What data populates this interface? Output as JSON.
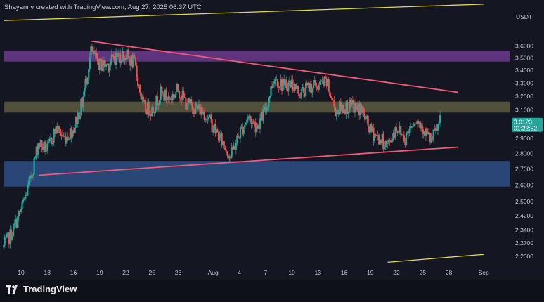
{
  "header": {
    "text": "Shayannv created with TradingView.com, Aug 27, 2025 06:37 UTC"
  },
  "brand": {
    "name": "TradingView"
  },
  "colors": {
    "background": "#141722",
    "candle_up": "#26a69a",
    "candle_down": "#ef5350",
    "trendline_pink": "#f05a78",
    "channel_yellow": "#e6d94a",
    "zone_purple": "#6b3a8c",
    "zone_olive": "#5c5a3e",
    "zone_blue": "#2d4f86",
    "badge": "#26a69a"
  },
  "chart_data": {
    "type": "candlestick",
    "currency_label": "USDT",
    "y_axis": {
      "scale": "log",
      "ticks": [
        "3.6000",
        "3.5000",
        "3.4000",
        "3.3000",
        "3.2000",
        "3.1000",
        "2.9000",
        "2.8000",
        "2.7000",
        "2.6000",
        "2.5000",
        "2.4200",
        "2.3400",
        "2.2700",
        "2.2000"
      ],
      "range": [
        2.17,
        3.75
      ]
    },
    "x_axis": {
      "ticks": [
        "10",
        "13",
        "16",
        "19",
        "22",
        "25",
        "28",
        "Aug",
        "4",
        "7",
        "10",
        "13",
        "16",
        "19",
        "22",
        "25",
        "28",
        "Sep"
      ],
      "range": [
        "2025-07-08",
        "2025-09-01"
      ]
    },
    "current_price": {
      "value": "3.0123",
      "countdown": "01:22:52"
    },
    "zones": [
      {
        "name": "supply-zone-purple",
        "from": 3.47,
        "to": 3.56
      },
      {
        "name": "mid-zone-olive",
        "from": 3.08,
        "to": 3.16
      },
      {
        "name": "demand-zone-blue",
        "from": 2.59,
        "to": 2.75
      }
    ],
    "lines": [
      {
        "name": "upper-channel-line",
        "from": [
          "2025-07-08",
          3.82
        ],
        "to": [
          "2025-09-01",
          3.97
        ]
      },
      {
        "name": "lower-channel-line",
        "from": [
          "2025-08-21",
          2.17
        ],
        "to": [
          "2025-09-01",
          2.21
        ]
      },
      {
        "name": "triangle-upper-line",
        "from": [
          "2025-07-18",
          3.64
        ],
        "to": [
          "2025-08-29",
          3.23
        ]
      },
      {
        "name": "triangle-lower-line",
        "from": [
          "2025-07-12",
          2.66
        ],
        "to": [
          "2025-08-29",
          2.84
        ]
      }
    ],
    "price_path": [
      [
        "2025-07-08",
        2.25
      ],
      [
        "2025-07-09",
        2.33
      ],
      [
        "2025-07-10",
        2.45
      ],
      [
        "2025-07-11",
        2.62
      ],
      [
        "2025-07-12",
        2.87
      ],
      [
        "2025-07-13",
        2.82
      ],
      [
        "2025-07-14",
        2.97
      ],
      [
        "2025-07-15",
        2.9
      ],
      [
        "2025-07-16",
        2.97
      ],
      [
        "2025-07-17",
        3.15
      ],
      [
        "2025-07-18",
        3.55
      ],
      [
        "2025-07-19",
        3.44
      ],
      [
        "2025-07-20",
        3.45
      ],
      [
        "2025-07-21",
        3.52
      ],
      [
        "2025-07-22",
        3.52
      ],
      [
        "2025-07-23",
        3.45
      ],
      [
        "2025-07-24",
        3.12
      ],
      [
        "2025-07-25",
        3.1
      ],
      [
        "2025-07-26",
        3.22
      ],
      [
        "2025-07-27",
        3.18
      ],
      [
        "2025-07-28",
        3.25
      ],
      [
        "2025-07-29",
        3.14
      ],
      [
        "2025-07-30",
        3.12
      ],
      [
        "2025-07-31",
        3.08
      ],
      [
        "2025-08-01",
        2.98
      ],
      [
        "2025-08-02",
        2.88
      ],
      [
        "2025-08-03",
        2.78
      ],
      [
        "2025-08-04",
        2.93
      ],
      [
        "2025-08-05",
        3.05
      ],
      [
        "2025-08-06",
        2.98
      ],
      [
        "2025-08-07",
        3.1
      ],
      [
        "2025-08-08",
        3.35
      ],
      [
        "2025-08-09",
        3.28
      ],
      [
        "2025-08-10",
        3.3
      ],
      [
        "2025-08-11",
        3.22
      ],
      [
        "2025-08-12",
        3.27
      ],
      [
        "2025-08-13",
        3.28
      ],
      [
        "2025-08-14",
        3.3
      ],
      [
        "2025-08-15",
        3.1
      ],
      [
        "2025-08-16",
        3.12
      ],
      [
        "2025-08-17",
        3.12
      ],
      [
        "2025-08-18",
        3.1
      ],
      [
        "2025-08-19",
        2.95
      ],
      [
        "2025-08-20",
        2.9
      ],
      [
        "2025-08-21",
        2.85
      ],
      [
        "2025-08-22",
        2.98
      ],
      [
        "2025-08-23",
        2.9
      ],
      [
        "2025-08-24",
        3.04
      ],
      [
        "2025-08-25",
        2.98
      ],
      [
        "2025-08-26",
        2.88
      ],
      [
        "2025-08-27",
        3.01
      ]
    ]
  }
}
